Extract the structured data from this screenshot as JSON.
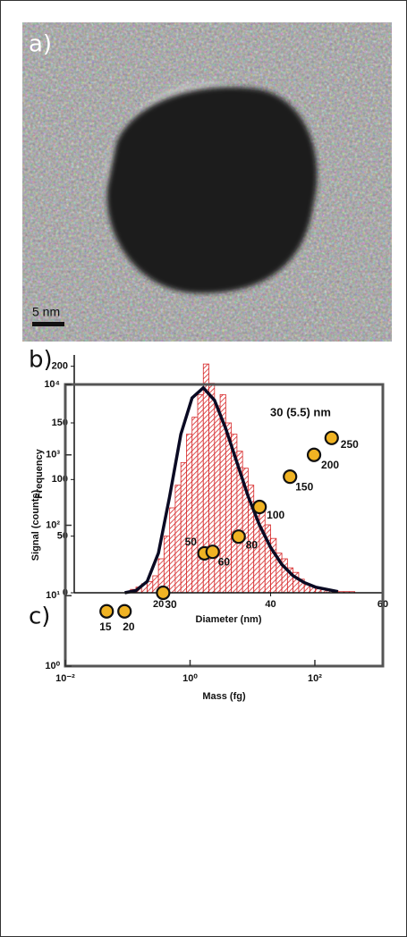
{
  "image": {
    "label": "a)",
    "scale_bar": "5 nm"
  },
  "chart_data": [
    {
      "type": "histogram",
      "panel": "b)",
      "ylabel": "Frequency",
      "xlabel": "Diameter (nm)",
      "annotation": "30 (5.5) nm",
      "bins": [
        15,
        16,
        17,
        18,
        19,
        20,
        21,
        22,
        23,
        24,
        25,
        26,
        27,
        28,
        29,
        30,
        31,
        32,
        33,
        34,
        35,
        36,
        37,
        38,
        39,
        40,
        41,
        42,
        43,
        44,
        45,
        46,
        47,
        48,
        49,
        50,
        51,
        52,
        53,
        54,
        55
      ],
      "values": [
        3,
        5,
        8,
        10,
        15,
        30,
        50,
        75,
        95,
        115,
        140,
        155,
        175,
        202,
        185,
        165,
        175,
        150,
        140,
        125,
        110,
        95,
        80,
        75,
        60,
        48,
        35,
        30,
        22,
        18,
        12,
        8,
        6,
        4,
        3,
        2,
        2,
        1,
        1,
        1
      ],
      "color": "#d62728",
      "fit": {
        "x": [
          14,
          16,
          18,
          20,
          22,
          24,
          26,
          28,
          30,
          32,
          34,
          36,
          38,
          40,
          42,
          44,
          46,
          48,
          50,
          52
        ],
        "values": [
          0,
          2,
          10,
          35,
          85,
          140,
          172,
          181,
          170,
          145,
          115,
          85,
          60,
          40,
          25,
          15,
          9,
          5,
          3,
          1
        ],
        "color": "#0a0a23"
      },
      "xlim": [
        5,
        60
      ],
      "xticks": [
        20,
        40,
        60
      ],
      "ylim": [
        0,
        210
      ],
      "yticks": [
        0,
        50,
        100,
        150,
        200
      ]
    },
    {
      "type": "scatter",
      "panel": "c)",
      "ylabel": "Signal (counts)",
      "xlabel": "Mass (fg)",
      "x": [
        0.046,
        0.089,
        0.37,
        1.7,
        2.3,
        6.0,
        13,
        40,
        97,
        186
      ],
      "values": [
        6,
        6,
        11,
        40,
        42,
        69,
        182,
        490,
        1000,
        1740
      ],
      "labels": [
        "15",
        "20",
        "30",
        "50",
        "60",
        "80",
        "100",
        "150",
        "200",
        "250"
      ],
      "color": "#f0b323",
      "xlog": true,
      "ylog": true,
      "xlim": [
        0.01,
        1230
      ],
      "xticks": [
        {
          "value": 0.01,
          "label": "10⁻²"
        },
        {
          "value": 1,
          "label": "10⁰"
        },
        {
          "value": 100,
          "label": "10²"
        }
      ],
      "ylim": [
        1,
        10000
      ],
      "yticks": [
        {
          "value": 1,
          "label": "10⁰"
        },
        {
          "value": 10,
          "label": "10¹"
        },
        {
          "value": 100,
          "label": "10²"
        },
        {
          "value": 1000,
          "label": "10³"
        },
        {
          "value": 10000,
          "label": "10⁴"
        }
      ]
    }
  ]
}
